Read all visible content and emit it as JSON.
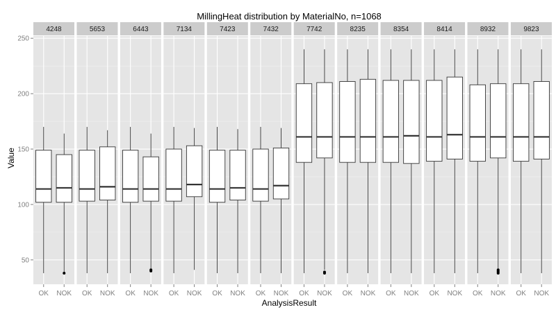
{
  "chart_data": {
    "type": "boxplot",
    "title": "MillingHeat distribution by MaterialNo, n=1068",
    "xlabel": "AnalysisResult",
    "ylabel": "Value",
    "ylim": [
      28,
      252
    ],
    "yticks": [
      50,
      100,
      150,
      200,
      250
    ],
    "categories": [
      "OK",
      "NOK"
    ],
    "facet_by": "MaterialNo",
    "grid": true,
    "colors": {
      "panel_bg": "#e5e5e5",
      "grid_major": "#ffffff",
      "grid_minor": "#f2f2f2",
      "strip_bg": "#cccccc",
      "box_fill": "#ffffff",
      "box_stroke": "#333333",
      "tick_text": "#7f7f7f"
    },
    "facets": [
      {
        "label": "4248",
        "boxes": [
          {
            "category": "OK",
            "min": 38,
            "q1": 102,
            "median": 114,
            "q3": 149,
            "max": 170,
            "outliers": []
          },
          {
            "category": "NOK",
            "min": 38,
            "q1": 102,
            "median": 115,
            "q3": 145,
            "max": 164,
            "outliers": [
              38
            ]
          }
        ]
      },
      {
        "label": "5653",
        "boxes": [
          {
            "category": "OK",
            "min": 38,
            "q1": 103,
            "median": 114,
            "q3": 149,
            "max": 170,
            "outliers": []
          },
          {
            "category": "NOK",
            "min": 38,
            "q1": 104,
            "median": 116,
            "q3": 152,
            "max": 167,
            "outliers": []
          }
        ]
      },
      {
        "label": "6443",
        "boxes": [
          {
            "category": "OK",
            "min": 38,
            "q1": 102,
            "median": 114,
            "q3": 149,
            "max": 170,
            "outliers": []
          },
          {
            "category": "NOK",
            "min": 42,
            "q1": 103,
            "median": 114,
            "q3": 143,
            "max": 164,
            "outliers": [
              40,
              41
            ]
          }
        ]
      },
      {
        "label": "7134",
        "boxes": [
          {
            "category": "OK",
            "min": 38,
            "q1": 103,
            "median": 114,
            "q3": 150,
            "max": 170,
            "outliers": []
          },
          {
            "category": "NOK",
            "min": 41,
            "q1": 107,
            "median": 118,
            "q3": 153,
            "max": 169,
            "outliers": []
          }
        ]
      },
      {
        "label": "7423",
        "boxes": [
          {
            "category": "OK",
            "min": 38,
            "q1": 102,
            "median": 114,
            "q3": 149,
            "max": 170,
            "outliers": []
          },
          {
            "category": "NOK",
            "min": 38,
            "q1": 104,
            "median": 115,
            "q3": 149,
            "max": 168,
            "outliers": []
          }
        ]
      },
      {
        "label": "7432",
        "boxes": [
          {
            "category": "OK",
            "min": 38,
            "q1": 103,
            "median": 114,
            "q3": 150,
            "max": 170,
            "outliers": []
          },
          {
            "category": "NOK",
            "min": 38,
            "q1": 105,
            "median": 117,
            "q3": 151,
            "max": 169,
            "outliers": []
          }
        ]
      },
      {
        "label": "7742",
        "boxes": [
          {
            "category": "OK",
            "min": 38,
            "q1": 138,
            "median": 161,
            "q3": 209,
            "max": 240,
            "outliers": []
          },
          {
            "category": "NOK",
            "min": 41,
            "q1": 142,
            "median": 161,
            "q3": 210,
            "max": 240,
            "outliers": [
              38,
              39
            ]
          }
        ]
      },
      {
        "label": "8235",
        "boxes": [
          {
            "category": "OK",
            "min": 38,
            "q1": 138,
            "median": 161,
            "q3": 211,
            "max": 240,
            "outliers": []
          },
          {
            "category": "NOK",
            "min": 38,
            "q1": 138,
            "median": 161,
            "q3": 213,
            "max": 240,
            "outliers": []
          }
        ]
      },
      {
        "label": "8354",
        "boxes": [
          {
            "category": "OK",
            "min": 38,
            "q1": 138,
            "median": 161,
            "q3": 212,
            "max": 240,
            "outliers": []
          },
          {
            "category": "NOK",
            "min": 38,
            "q1": 137,
            "median": 162,
            "q3": 212,
            "max": 240,
            "outliers": []
          }
        ]
      },
      {
        "label": "8414",
        "boxes": [
          {
            "category": "OK",
            "min": 38,
            "q1": 139,
            "median": 161,
            "q3": 212,
            "max": 240,
            "outliers": []
          },
          {
            "category": "NOK",
            "min": 38,
            "q1": 141,
            "median": 163,
            "q3": 215,
            "max": 240,
            "outliers": []
          }
        ]
      },
      {
        "label": "8932",
        "boxes": [
          {
            "category": "OK",
            "min": 38,
            "q1": 139,
            "median": 161,
            "q3": 208,
            "max": 240,
            "outliers": []
          },
          {
            "category": "NOK",
            "min": 42,
            "q1": 142,
            "median": 161,
            "q3": 209,
            "max": 240,
            "outliers": [
              38,
              39,
              40,
              41
            ]
          }
        ]
      },
      {
        "label": "9823",
        "boxes": [
          {
            "category": "OK",
            "min": 38,
            "q1": 139,
            "median": 161,
            "q3": 209,
            "max": 240,
            "outliers": []
          },
          {
            "category": "NOK",
            "min": 38,
            "q1": 141,
            "median": 161,
            "q3": 211,
            "max": 240,
            "outliers": []
          }
        ]
      }
    ]
  }
}
